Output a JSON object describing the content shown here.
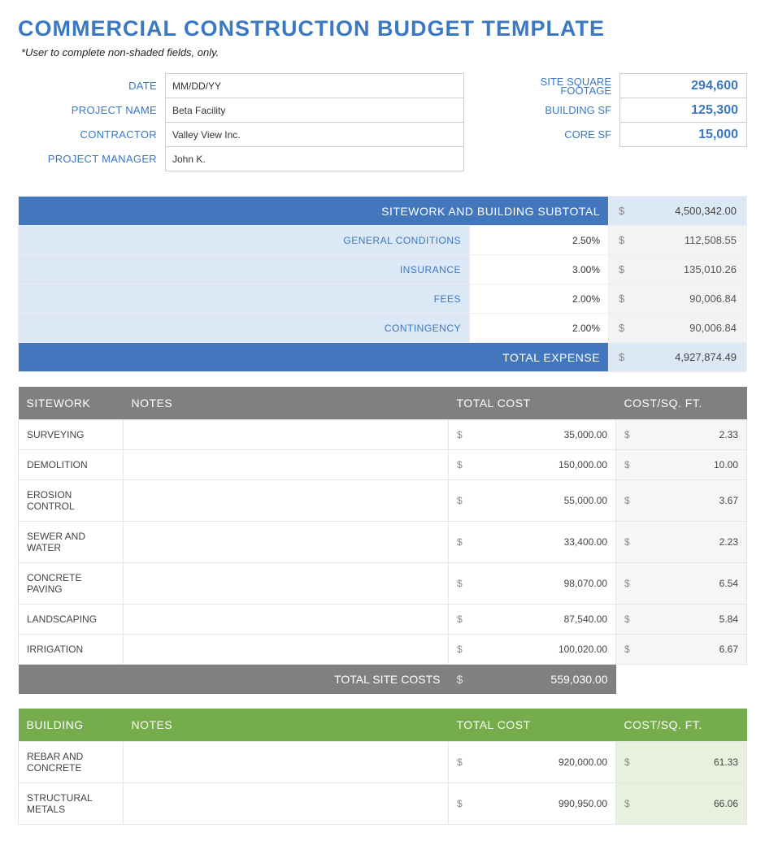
{
  "title": "COMMERCIAL CONSTRUCTION BUDGET TEMPLATE",
  "subtitle": "*User to complete non-shaded fields, only.",
  "info": {
    "labels": {
      "date": "DATE",
      "project": "PROJECT NAME",
      "contractor": "CONTRACTOR",
      "manager": "PROJECT MANAGER",
      "site_sf_1": "SITE SQUARE",
      "site_sf_2": "FOOTAGE",
      "building_sf": "BUILDING SF",
      "core_sf": "CORE SF"
    },
    "values": {
      "date": "MM/DD/YY",
      "project": "Beta Facility",
      "contractor": "Valley View Inc.",
      "manager": "John K.",
      "site_sf": "294,600",
      "building_sf": "125,300",
      "core_sf": "15,000"
    }
  },
  "summary": {
    "header": {
      "label": "SITEWORK AND BUILDING SUBTOTAL",
      "amount": "4,500,342.00"
    },
    "rows": [
      {
        "label": "GENERAL CONDITIONS",
        "pct": "2.50%",
        "amount": "112,508.55"
      },
      {
        "label": "INSURANCE",
        "pct": "3.00%",
        "amount": "135,010.26"
      },
      {
        "label": "FEES",
        "pct": "2.00%",
        "amount": "90,006.84"
      },
      {
        "label": "CONTINGENCY",
        "pct": "2.00%",
        "amount": "90,006.84"
      }
    ],
    "footer": {
      "label": "TOTAL EXPENSE",
      "amount": "4,927,874.49"
    }
  },
  "sitework": {
    "headers": {
      "c0": "SITEWORK",
      "c1": "NOTES",
      "c2": "TOTAL COST",
      "c3": "COST/SQ. FT."
    },
    "rows": [
      {
        "name": "SURVEYING",
        "notes": "",
        "cost": "35,000.00",
        "sf": "2.33"
      },
      {
        "name": "DEMOLITION",
        "notes": "",
        "cost": "150,000.00",
        "sf": "10.00"
      },
      {
        "name": "EROSION CONTROL",
        "notes": "",
        "cost": "55,000.00",
        "sf": "3.67"
      },
      {
        "name": "SEWER AND WATER",
        "notes": "",
        "cost": "33,400.00",
        "sf": "2.23"
      },
      {
        "name": "CONCRETE PAVING",
        "notes": "",
        "cost": "98,070.00",
        "sf": "6.54"
      },
      {
        "name": "LANDSCAPING",
        "notes": "",
        "cost": "87,540.00",
        "sf": "5.84"
      },
      {
        "name": "IRRIGATION",
        "notes": "",
        "cost": "100,020.00",
        "sf": "6.67"
      }
    ],
    "total": {
      "label": "TOTAL SITE COSTS",
      "amount": "559,030.00"
    }
  },
  "building": {
    "headers": {
      "c0": "BUILDING",
      "c1": "NOTES",
      "c2": "TOTAL COST",
      "c3": "COST/SQ. FT."
    },
    "rows": [
      {
        "name": "REBAR AND CONCRETE",
        "notes": "",
        "cost": "920,000.00",
        "sf": "61.33"
      },
      {
        "name": "STRUCTURAL METALS",
        "notes": "",
        "cost": "990,950.00",
        "sf": "66.06"
      }
    ]
  },
  "currency": "$"
}
